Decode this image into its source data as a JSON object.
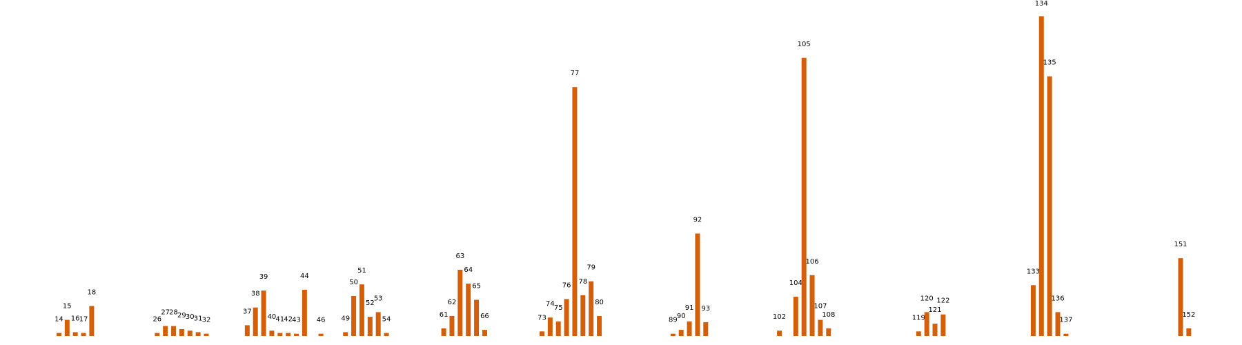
{
  "chart_data": {
    "type": "bar",
    "color": "#d45f0a",
    "x": [
      14,
      15,
      16,
      17,
      18,
      26,
      27,
      28,
      29,
      30,
      31,
      32,
      37,
      38,
      39,
      40,
      41,
      42,
      43,
      44,
      46,
      49,
      50,
      51,
      52,
      53,
      54,
      61,
      62,
      63,
      64,
      65,
      66,
      73,
      74,
      75,
      76,
      77,
      78,
      79,
      80,
      89,
      90,
      91,
      92,
      93,
      102,
      104,
      105,
      106,
      107,
      108,
      119,
      120,
      121,
      122,
      133,
      134,
      135,
      136,
      137,
      151,
      152
    ],
    "values": [
      4,
      21,
      5,
      4,
      39,
      4,
      13,
      13,
      9,
      7,
      5,
      3,
      14,
      37,
      59,
      7,
      4,
      4,
      3,
      60,
      3,
      5,
      52,
      67,
      25,
      31,
      4,
      10,
      26,
      86,
      68,
      47,
      8,
      6,
      24,
      19,
      48,
      323,
      53,
      71,
      26,
      3,
      8,
      19,
      133,
      18,
      7,
      51,
      361,
      79,
      21,
      10,
      6,
      31,
      16,
      28,
      66,
      415,
      337,
      31,
      3,
      101,
      10
    ],
    "xlim": [
      6.8,
      158.5
    ],
    "ylim": [
      0,
      436
    ]
  }
}
